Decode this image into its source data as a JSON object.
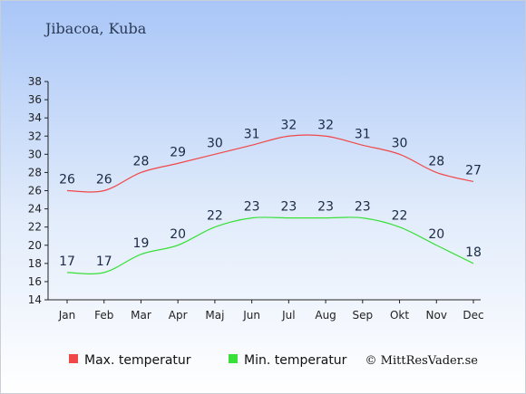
{
  "chart_data": {
    "type": "line",
    "title": "Jibacoa, Kuba",
    "categories": [
      "Jan",
      "Feb",
      "Mar",
      "Apr",
      "Maj",
      "Jun",
      "Jul",
      "Aug",
      "Sep",
      "Okt",
      "Nov",
      "Dec"
    ],
    "series": [
      {
        "name": "Max. temperatur",
        "color": "#f04848",
        "values": [
          26,
          26,
          28,
          29,
          30,
          31,
          32,
          32,
          31,
          30,
          28,
          27
        ]
      },
      {
        "name": "Min. temperatur",
        "color": "#38e038",
        "values": [
          17,
          17,
          19,
          20,
          22,
          23,
          23,
          23,
          23,
          22,
          20,
          18
        ]
      }
    ],
    "ylim": [
      14,
      38
    ],
    "yticks": [
      14,
      16,
      18,
      20,
      22,
      24,
      26,
      28,
      30,
      32,
      34,
      36,
      38
    ],
    "grid": false,
    "legend_position": "bottom"
  },
  "credit": "© MittResVader.se"
}
